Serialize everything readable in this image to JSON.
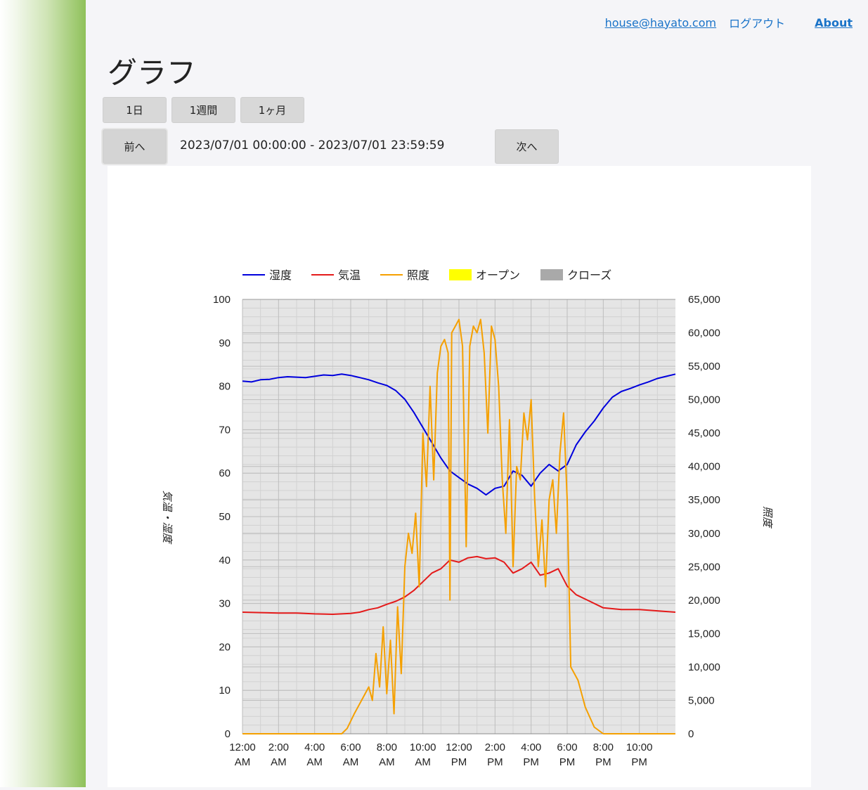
{
  "nav": {
    "user_email": "house@hayato.com",
    "logout_label": "ログアウト",
    "about_label": "About"
  },
  "page": {
    "title": "グラフ"
  },
  "period_buttons": {
    "day": "1日",
    "week": "1週間",
    "month": "1ヶ月"
  },
  "pager": {
    "prev_label": "前へ",
    "next_label": "次へ",
    "range_text": "2023/07/01 00:00:00 - 2023/07/01 23:59:59"
  },
  "colors": {
    "humidity": "#0000dd",
    "temperature": "#e41a1a",
    "illuminance": "#f5a000",
    "open": "#ffff00",
    "close": "#a9a9a9",
    "plot_bg": "#e5e5e5"
  },
  "chart_data": {
    "type": "line",
    "title": "",
    "legend_position": "top",
    "legend": [
      {
        "key": "humidity",
        "label": "湿度",
        "kind": "line"
      },
      {
        "key": "temperature",
        "label": "気温",
        "kind": "line"
      },
      {
        "key": "illuminance",
        "label": "照度",
        "kind": "line"
      },
      {
        "key": "open",
        "label": "オープン",
        "kind": "box"
      },
      {
        "key": "close",
        "label": "クローズ",
        "kind": "box"
      }
    ],
    "ylabel_left": "気温・湿度",
    "ylabel_right": "照度",
    "x_unit": "hours since 00:00 on 2023/07/01",
    "xlim": [
      0,
      24
    ],
    "ylim_left": [
      0,
      100
    ],
    "ylim_right": [
      0,
      65000
    ],
    "grid": true,
    "x_ticks": [
      {
        "x": 0,
        "line1": "12:00",
        "line2": "AM"
      },
      {
        "x": 2,
        "line1": "2:00",
        "line2": "AM"
      },
      {
        "x": 4,
        "line1": "4:00",
        "line2": "AM"
      },
      {
        "x": 6,
        "line1": "6:00",
        "line2": "AM"
      },
      {
        "x": 8,
        "line1": "8:00",
        "line2": "AM"
      },
      {
        "x": 10,
        "line1": "10:00",
        "line2": "AM"
      },
      {
        "x": 12,
        "line1": "12:00",
        "line2": "PM"
      },
      {
        "x": 14,
        "line1": "2:00",
        "line2": "PM"
      },
      {
        "x": 16,
        "line1": "4:00",
        "line2": "PM"
      },
      {
        "x": 18,
        "line1": "6:00",
        "line2": "PM"
      },
      {
        "x": 20,
        "line1": "8:00",
        "line2": "PM"
      },
      {
        "x": 22,
        "line1": "10:00",
        "line2": "PM"
      }
    ],
    "y_ticks_left": [
      "0",
      "10",
      "20",
      "30",
      "40",
      "50",
      "60",
      "70",
      "80",
      "90",
      "100"
    ],
    "y_ticks_right": [
      "0",
      "5,000",
      "10,000",
      "15,000",
      "20,000",
      "25,000",
      "30,000",
      "35,000",
      "40,000",
      "45,000",
      "50,000",
      "55,000",
      "60,000",
      "65,000"
    ],
    "series": [
      {
        "key": "humidity",
        "name": "湿度",
        "axis": "left",
        "points": [
          [
            0,
            81.2
          ],
          [
            0.5,
            81.0
          ],
          [
            1,
            81.5
          ],
          [
            1.5,
            81.6
          ],
          [
            2,
            82.0
          ],
          [
            2.5,
            82.2
          ],
          [
            3,
            82.1
          ],
          [
            3.5,
            82.0
          ],
          [
            4,
            82.3
          ],
          [
            4.5,
            82.6
          ],
          [
            5,
            82.5
          ],
          [
            5.5,
            82.8
          ],
          [
            6,
            82.5
          ],
          [
            6.5,
            82.0
          ],
          [
            7,
            81.5
          ],
          [
            7.5,
            80.8
          ],
          [
            8,
            80.2
          ],
          [
            8.5,
            79.0
          ],
          [
            9,
            77.0
          ],
          [
            9.5,
            74.0
          ],
          [
            10,
            70.5
          ],
          [
            10.5,
            67.0
          ],
          [
            11,
            63.5
          ],
          [
            11.5,
            60.5
          ],
          [
            12,
            59.0
          ],
          [
            12.5,
            57.5
          ],
          [
            13,
            56.5
          ],
          [
            13.5,
            55.0
          ],
          [
            14,
            56.5
          ],
          [
            14.5,
            57.0
          ],
          [
            15,
            60.5
          ],
          [
            15.5,
            59.5
          ],
          [
            16,
            57.0
          ],
          [
            16.5,
            60.0
          ],
          [
            17,
            62.0
          ],
          [
            17.5,
            60.5
          ],
          [
            18,
            62.0
          ],
          [
            18.5,
            66.5
          ],
          [
            19,
            69.5
          ],
          [
            19.5,
            72.0
          ],
          [
            20,
            75.0
          ],
          [
            20.5,
            77.5
          ],
          [
            21,
            78.8
          ],
          [
            21.5,
            79.5
          ],
          [
            22,
            80.3
          ],
          [
            22.5,
            81.0
          ],
          [
            23,
            81.8
          ],
          [
            23.5,
            82.3
          ],
          [
            24,
            82.8
          ]
        ]
      },
      {
        "key": "temperature",
        "name": "気温",
        "axis": "left",
        "points": [
          [
            0,
            28.0
          ],
          [
            1,
            27.9
          ],
          [
            2,
            27.8
          ],
          [
            3,
            27.8
          ],
          [
            4,
            27.6
          ],
          [
            5,
            27.5
          ],
          [
            6,
            27.7
          ],
          [
            6.5,
            28.0
          ],
          [
            7,
            28.6
          ],
          [
            7.5,
            29.0
          ],
          [
            8,
            29.8
          ],
          [
            8.5,
            30.5
          ],
          [
            9,
            31.5
          ],
          [
            9.5,
            33.0
          ],
          [
            10,
            35.0
          ],
          [
            10.5,
            37.0
          ],
          [
            11,
            38.0
          ],
          [
            11.5,
            40.0
          ],
          [
            12,
            39.5
          ],
          [
            12.5,
            40.5
          ],
          [
            13,
            40.8
          ],
          [
            13.5,
            40.3
          ],
          [
            14,
            40.5
          ],
          [
            14.5,
            39.5
          ],
          [
            15,
            37.0
          ],
          [
            15.5,
            38.0
          ],
          [
            16,
            39.5
          ],
          [
            16.5,
            36.5
          ],
          [
            17,
            37.0
          ],
          [
            17.5,
            38.0
          ],
          [
            18,
            34.0
          ],
          [
            18.5,
            32.0
          ],
          [
            19,
            31.0
          ],
          [
            20,
            29.0
          ],
          [
            21,
            28.6
          ],
          [
            22,
            28.6
          ],
          [
            23,
            28.3
          ],
          [
            24,
            28.0
          ]
        ]
      },
      {
        "key": "illuminance",
        "name": "照度",
        "axis": "right",
        "points": [
          [
            0,
            0
          ],
          [
            5.5,
            0
          ],
          [
            5.8,
            800
          ],
          [
            6.2,
            3000
          ],
          [
            6.6,
            5000
          ],
          [
            7,
            7000
          ],
          [
            7.2,
            5000
          ],
          [
            7.4,
            12000
          ],
          [
            7.6,
            7000
          ],
          [
            7.8,
            16000
          ],
          [
            8,
            6000
          ],
          [
            8.2,
            14000
          ],
          [
            8.4,
            3000
          ],
          [
            8.6,
            19000
          ],
          [
            8.8,
            9000
          ],
          [
            9,
            25000
          ],
          [
            9.2,
            30000
          ],
          [
            9.4,
            27000
          ],
          [
            9.6,
            33000
          ],
          [
            9.8,
            22000
          ],
          [
            10,
            45000
          ],
          [
            10.2,
            37000
          ],
          [
            10.4,
            52000
          ],
          [
            10.6,
            38000
          ],
          [
            10.8,
            54000
          ],
          [
            11,
            58000
          ],
          [
            11.2,
            59000
          ],
          [
            11.4,
            57000
          ],
          [
            11.5,
            20000
          ],
          [
            11.6,
            60000
          ],
          [
            11.8,
            61000
          ],
          [
            12,
            62000
          ],
          [
            12.2,
            58000
          ],
          [
            12.4,
            28000
          ],
          [
            12.6,
            58000
          ],
          [
            12.8,
            61000
          ],
          [
            13,
            60000
          ],
          [
            13.2,
            62000
          ],
          [
            13.4,
            57000
          ],
          [
            13.6,
            45000
          ],
          [
            13.8,
            61000
          ],
          [
            14,
            59000
          ],
          [
            14.2,
            52000
          ],
          [
            14.4,
            38000
          ],
          [
            14.6,
            30000
          ],
          [
            14.8,
            47000
          ],
          [
            15,
            25000
          ],
          [
            15.2,
            40000
          ],
          [
            15.4,
            38000
          ],
          [
            15.6,
            48000
          ],
          [
            15.8,
            44000
          ],
          [
            16,
            50000
          ],
          [
            16.2,
            35000
          ],
          [
            16.4,
            25000
          ],
          [
            16.6,
            32000
          ],
          [
            16.8,
            22000
          ],
          [
            17,
            35000
          ],
          [
            17.2,
            38000
          ],
          [
            17.4,
            30000
          ],
          [
            17.6,
            42000
          ],
          [
            17.8,
            48000
          ],
          [
            18,
            35000
          ],
          [
            18.2,
            10000
          ],
          [
            18.6,
            8000
          ],
          [
            19,
            4000
          ],
          [
            19.5,
            1000
          ],
          [
            20,
            0
          ],
          [
            24,
            0
          ]
        ]
      }
    ],
    "annotations": []
  }
}
